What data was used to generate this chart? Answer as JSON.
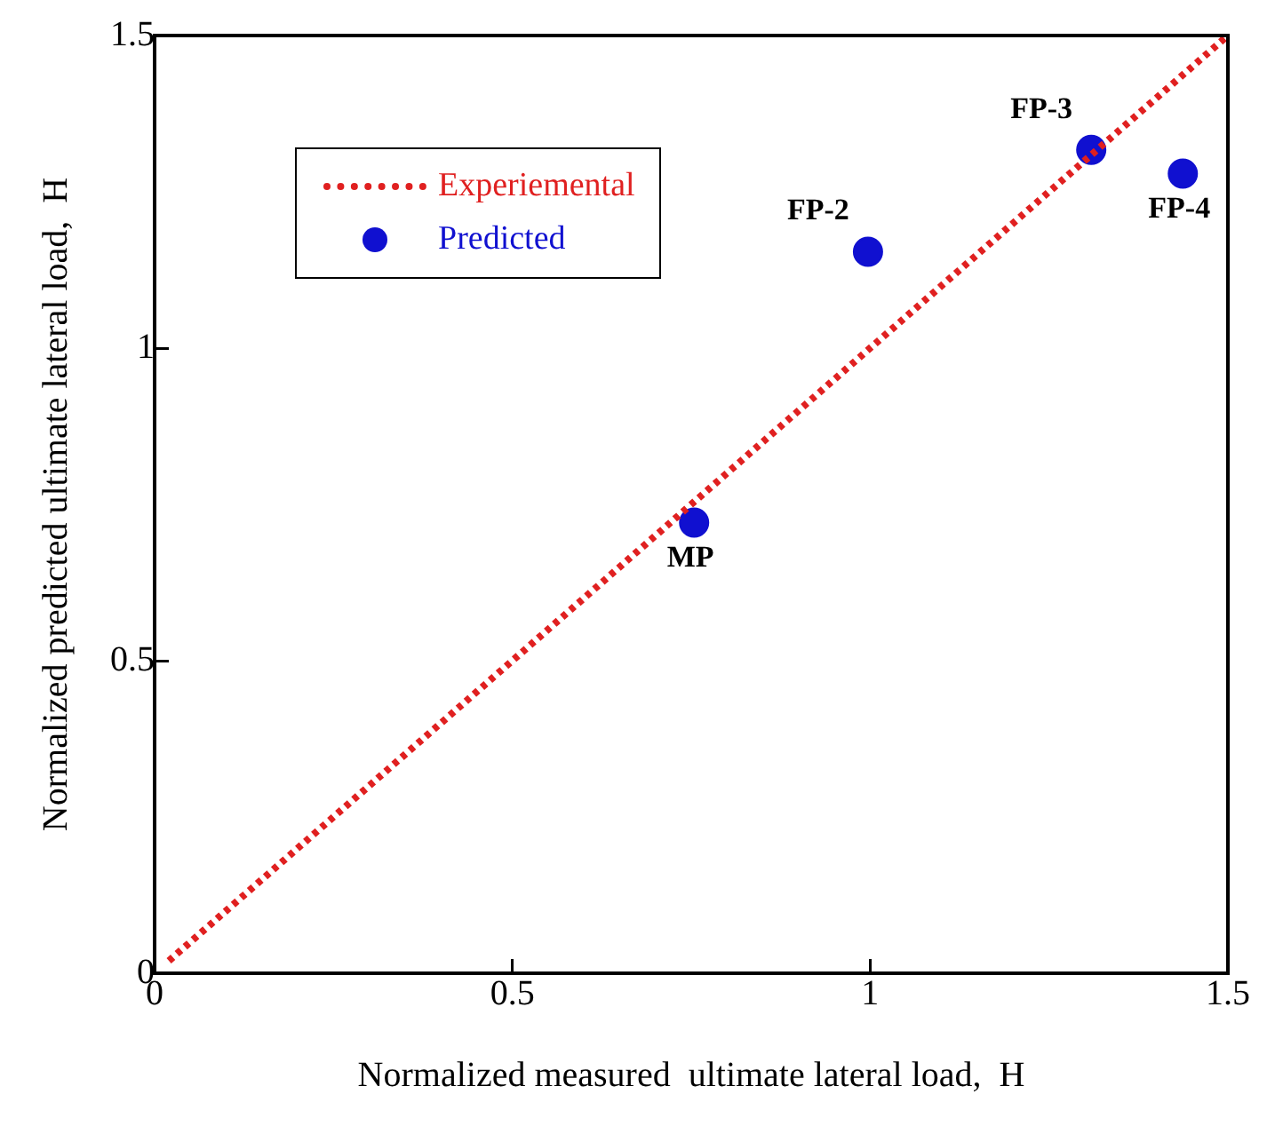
{
  "chart_data": {
    "type": "scatter",
    "xlabel": "Normalized measured  ultimate lateral load,  H",
    "ylabel": "Normalized predicted ultimate lateral load,  H",
    "xlim": [
      0,
      1.5
    ],
    "ylim": [
      0,
      1.5
    ],
    "xticks": [
      0,
      0.5,
      1,
      1.5
    ],
    "yticks": [
      0,
      0.5,
      1,
      1.5
    ],
    "grid": false,
    "legend": "top left",
    "series": [
      {
        "name": "Experiemental",
        "type": "line",
        "color": "#e02020",
        "line_style": "dotted",
        "marker": "none",
        "x": [
          0.02,
          1.5
        ],
        "values": [
          0.02,
          1.5
        ]
      },
      {
        "name": "Predicted",
        "type": "scatter",
        "color": "#1010d0",
        "marker": "circle",
        "x": [
          0.754,
          0.997,
          1.309,
          1.437
        ],
        "values": [
          0.721,
          1.154,
          1.317,
          1.279
        ]
      }
    ],
    "annotations": [
      {
        "text": "MP",
        "x": 0.754,
        "y": 0.721
      },
      {
        "text": "FP-2",
        "x": 0.997,
        "y": 1.154
      },
      {
        "text": "FP-3",
        "x": 1.309,
        "y": 1.317
      },
      {
        "text": "FP-4",
        "x": 1.437,
        "y": 1.279
      }
    ]
  }
}
